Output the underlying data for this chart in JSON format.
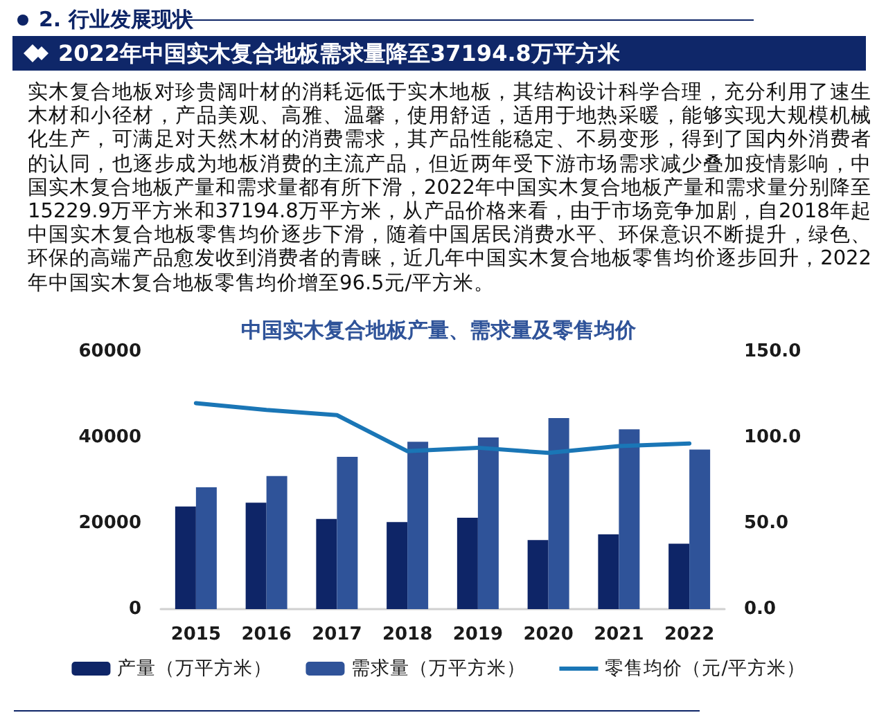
{
  "chart_data": {
    "type": "bar",
    "title": "中国实木复合地板产量、需求量及零售均价",
    "annotations": [
      "2. 行业发展现状",
      "2022年中国实木复合地板需求量降至37194.8万平方米",
      "实木复合地板对珍贵阔叶材的消耗远低于实木地板，其结构设计科学合理，充分利用了速生木材和小径材，产品美观、高雅、温馨，使用舒适，适用于地热采暖，能够实现大规模机械化生产，可满足对天然木材的消费需求，其产品性能稳定、不易变形，得到了国内外消费者的认同，也逐步成为地板消费的主流产品，但近两年受下游市场需求减少叠加疫情影响，中国实木复合地板产量和需求量都有所下滑，2022年中国实木复合地板产量和需求量分别降至15229.9万平方米和37194.8万平方米，从产品价格来看，由于市场竞争加剧，自2018年起中国实木复合地板零售均价逐步下滑，随着中国居民消费水平、环保意识不断提升，绿色、环保的高端产品愈发收到消费者的青睐，近几年中国实木复合地板零售均价逐步回升，2022年中国实木复合地板零售均价增至96.5元/平方米。"
    ],
    "categories": [
      "2015",
      "2016",
      "2017",
      "2018",
      "2019",
      "2020",
      "2021",
      "2022"
    ],
    "series": [
      {
        "name": "产量（万平方米）",
        "color": "#0e2567",
        "values": [
          23900,
          24800,
          21000,
          20300,
          21300,
          16100,
          17400,
          15229.9
        ]
      },
      {
        "name": "需求量（万平方米）",
        "color": "#2f5399",
        "values": [
          28400,
          31000,
          35500,
          39000,
          40000,
          44500,
          41900,
          37194.8
        ]
      },
      {
        "name": "零售均价（元/平方米）",
        "type": "line",
        "axis": "y2",
        "color": "#1a76b6",
        "values": [
          120,
          116,
          113,
          92,
          94,
          91,
          95,
          96.5
        ]
      }
    ],
    "ylim": [
      0,
      60000
    ],
    "yticks": [
      0,
      20000,
      40000,
      60000
    ],
    "y2lim": [
      0,
      150
    ],
    "y2ticks": [
      {
        "value": 0,
        "label": "0.0"
      },
      {
        "value": 50,
        "label": "50.0"
      },
      {
        "value": 100,
        "label": "100.0"
      },
      {
        "value": 150,
        "label": "150.0"
      }
    ],
    "grid": false,
    "legend": "bottom",
    "marker": "none"
  }
}
